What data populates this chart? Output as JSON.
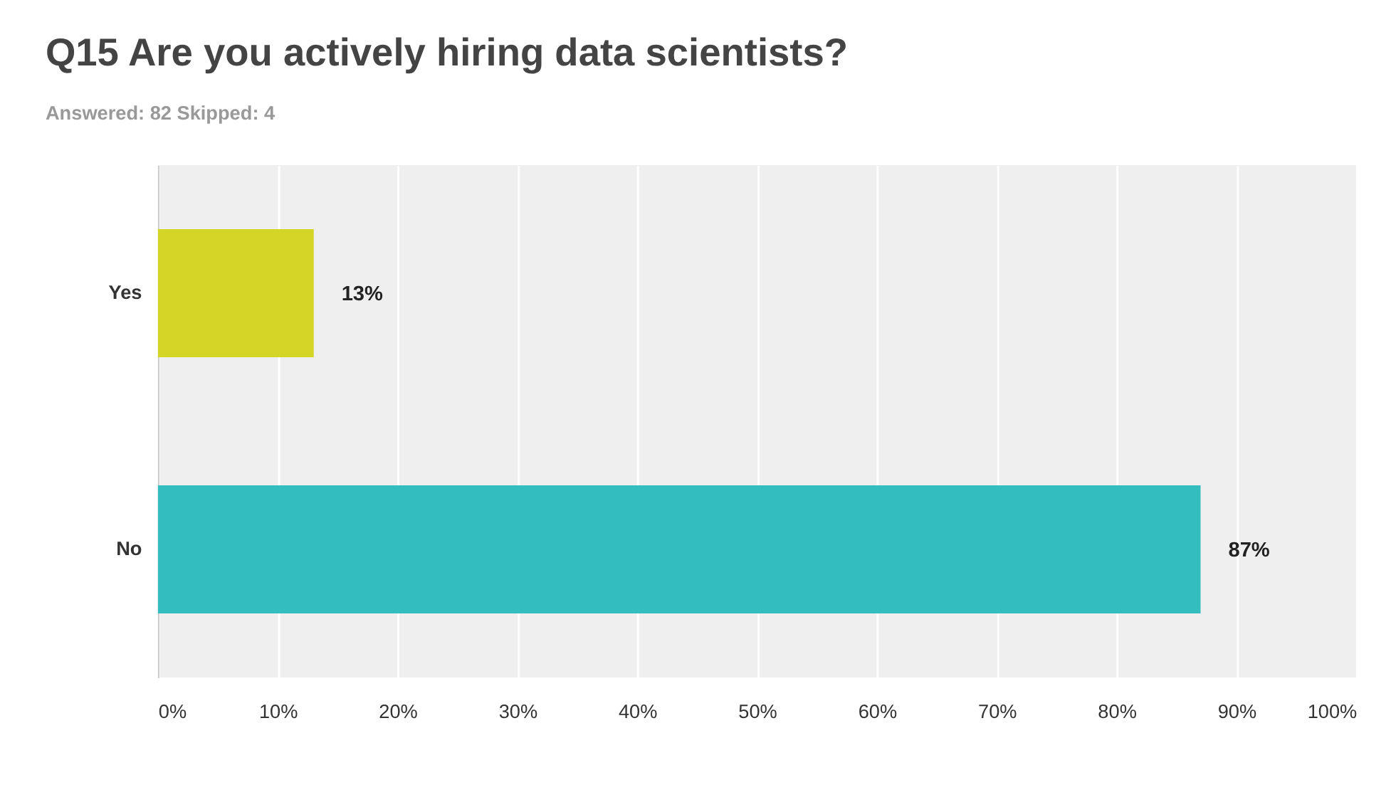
{
  "chart_data": {
    "type": "bar",
    "orientation": "horizontal",
    "title": "Q15 Are you actively hiring data scientists?",
    "subtitle": "Answered: 82    Skipped: 4",
    "categories": [
      "Yes",
      "No"
    ],
    "values": [
      13,
      87
    ],
    "colors": [
      "#d3d527",
      "#34bdbf"
    ],
    "value_labels": [
      "13%",
      "87%"
    ],
    "xlim": [
      0,
      100
    ],
    "xticks": [
      {
        "value": 0,
        "label": "0%"
      },
      {
        "value": 10,
        "label": "10%"
      },
      {
        "value": 20,
        "label": "20%"
      },
      {
        "value": 30,
        "label": "30%"
      },
      {
        "value": 40,
        "label": "40%"
      },
      {
        "value": 50,
        "label": "50%"
      },
      {
        "value": 60,
        "label": "60%"
      },
      {
        "value": 70,
        "label": "70%"
      },
      {
        "value": 80,
        "label": "80%"
      },
      {
        "value": 90,
        "label": "90%"
      },
      {
        "value": 100,
        "label": "100%"
      }
    ],
    "grid": "x",
    "legend": false
  }
}
